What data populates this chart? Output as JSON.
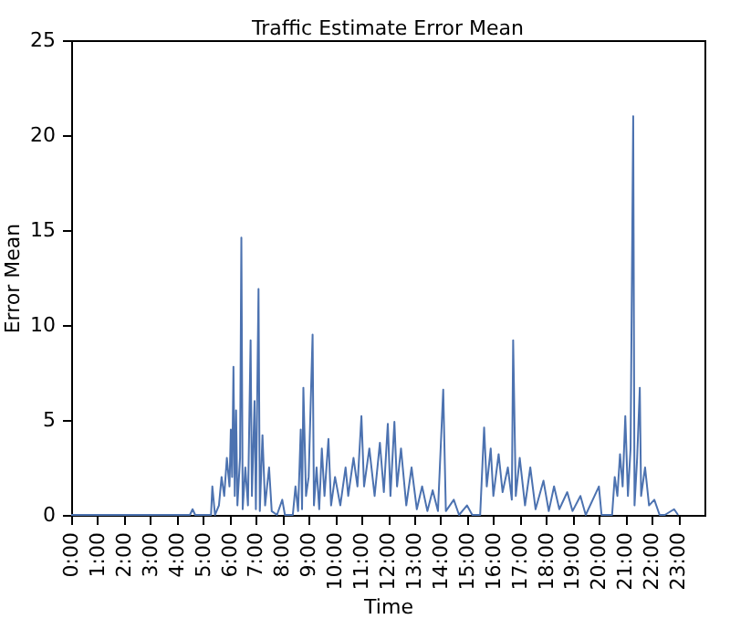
{
  "chart_data": {
    "type": "line",
    "title": "Traffic Estimate Error Mean",
    "xlabel": "Time",
    "ylabel": "Error Mean",
    "x": [
      0,
      4.5,
      4.6,
      4.7,
      5.3,
      5.35,
      5.45,
      5.6,
      5.7,
      5.8,
      5.9,
      6.0,
      6.05,
      6.1,
      6.15,
      6.2,
      6.25,
      6.3,
      6.4,
      6.45,
      6.5,
      6.6,
      6.7,
      6.8,
      6.85,
      6.95,
      7.0,
      7.1,
      7.15,
      7.25,
      7.35,
      7.5,
      7.6,
      7.8,
      8.0,
      8.1,
      8.4,
      8.5,
      8.6,
      8.7,
      8.75,
      8.8,
      8.9,
      9.0,
      9.15,
      9.2,
      9.3,
      9.4,
      9.5,
      9.6,
      9.75,
      9.85,
      10.0,
      10.2,
      10.4,
      10.5,
      10.7,
      10.85,
      11.0,
      11.1,
      11.3,
      11.5,
      11.7,
      11.85,
      12.0,
      12.1,
      12.25,
      12.35,
      12.5,
      12.7,
      12.9,
      13.1,
      13.3,
      13.5,
      13.7,
      13.9,
      14.1,
      14.2,
      14.5,
      14.7,
      15.0,
      15.2,
      15.5,
      15.65,
      15.75,
      15.9,
      16.0,
      16.2,
      16.35,
      16.55,
      16.7,
      16.75,
      16.85,
      17.0,
      17.2,
      17.4,
      17.6,
      17.9,
      18.1,
      18.3,
      18.5,
      18.8,
      19.0,
      19.3,
      19.5,
      20.0,
      20.1,
      20.5,
      20.6,
      20.7,
      20.8,
      20.9,
      21.0,
      21.1,
      21.2,
      21.3,
      21.35,
      21.45,
      21.55,
      21.6,
      21.75,
      21.9,
      22.1,
      22.3,
      22.5,
      22.85,
      23.0
    ],
    "series": [
      {
        "color": "#4c72b0",
        "values": [
          0,
          0,
          0.3,
          0,
          0,
          1.5,
          0,
          0.5,
          2,
          1,
          3,
          1.5,
          4.5,
          2,
          7.8,
          1,
          5.5,
          0.5,
          3,
          14.6,
          0.3,
          2.5,
          0.5,
          9.2,
          1,
          6,
          0.3,
          11.9,
          0.2,
          4.2,
          0.5,
          2.5,
          0.2,
          0,
          0.8,
          0,
          0,
          1.5,
          0.2,
          4.5,
          0.3,
          6.7,
          1,
          2,
          9.5,
          0.5,
          2.5,
          0.3,
          3.5,
          1,
          4,
          0.5,
          2,
          0.5,
          2.5,
          1,
          3,
          1.5,
          5.2,
          1.5,
          3.5,
          1,
          3.8,
          1.2,
          4.8,
          1,
          4.9,
          1.5,
          3.5,
          0.5,
          2.5,
          0.3,
          1.5,
          0.2,
          1.3,
          0.2,
          6.6,
          0.2,
          0.8,
          0,
          0.5,
          0,
          0,
          4.6,
          1.5,
          3.5,
          1,
          3.2,
          1.2,
          2.5,
          0.8,
          9.2,
          1,
          3,
          0.5,
          2.5,
          0.3,
          1.8,
          0.2,
          1.5,
          0.3,
          1.2,
          0.2,
          1,
          0,
          1.5,
          0,
          0,
          2,
          1,
          3.2,
          1.5,
          5.2,
          1,
          3.5,
          21,
          0.5,
          3,
          6.7,
          1,
          2.5,
          0.5,
          0.8,
          0,
          0,
          0.3,
          0
        ]
      }
    ],
    "xlim": [
      0,
      24
    ],
    "xticks": [
      {
        "value": 0,
        "label": "0:00"
      },
      {
        "value": 1,
        "label": "1:00"
      },
      {
        "value": 2,
        "label": "2:00"
      },
      {
        "value": 3,
        "label": "3:00"
      },
      {
        "value": 4,
        "label": "4:00"
      },
      {
        "value": 5,
        "label": "5:00"
      },
      {
        "value": 6,
        "label": "6:00"
      },
      {
        "value": 7,
        "label": "7:00"
      },
      {
        "value": 8,
        "label": "8:00"
      },
      {
        "value": 9,
        "label": "9:00"
      },
      {
        "value": 10,
        "label": "10:00"
      },
      {
        "value": 11,
        "label": "11:00"
      },
      {
        "value": 12,
        "label": "12:00"
      },
      {
        "value": 13,
        "label": "13:00"
      },
      {
        "value": 14,
        "label": "14:00"
      },
      {
        "value": 15,
        "label": "15:00"
      },
      {
        "value": 16,
        "label": "16:00"
      },
      {
        "value": 17,
        "label": "17:00"
      },
      {
        "value": 18,
        "label": "18:00"
      },
      {
        "value": 19,
        "label": "19:00"
      },
      {
        "value": 20,
        "label": "20:00"
      },
      {
        "value": 21,
        "label": "21:00"
      },
      {
        "value": 22,
        "label": "22:00"
      },
      {
        "value": 23,
        "label": "23:00"
      }
    ],
    "ylim": [
      0,
      25
    ],
    "yticks": [
      0,
      5,
      10,
      15,
      20,
      25
    ],
    "grid": false,
    "marker": "none",
    "line_style": "solid"
  }
}
